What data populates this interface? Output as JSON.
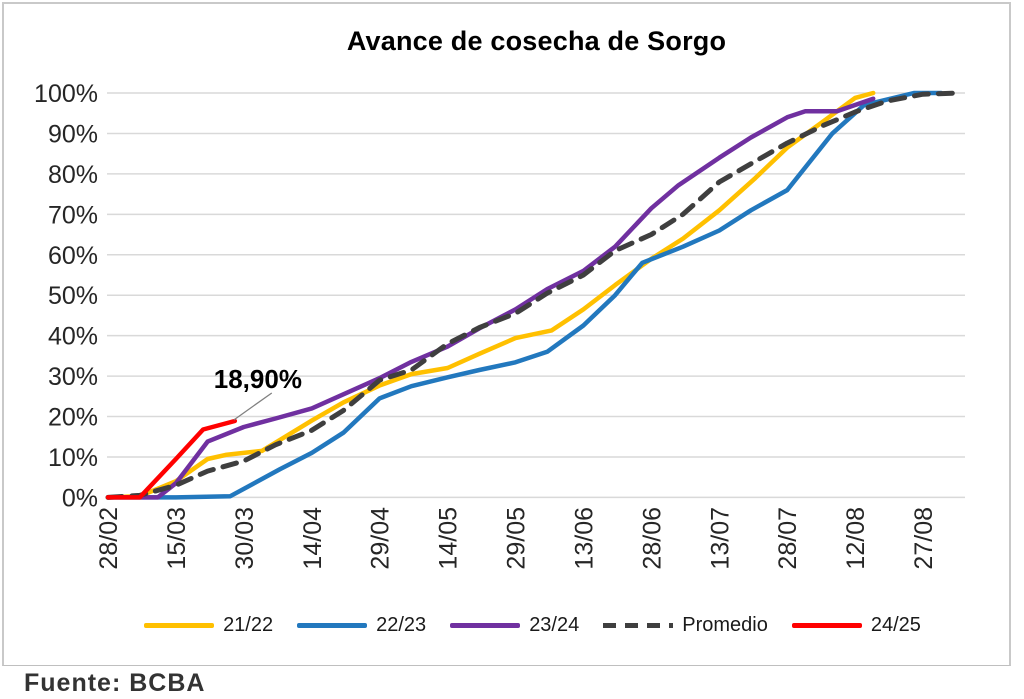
{
  "title": "Avance de cosecha de Sorgo",
  "source_note": "Fuente: BCBA",
  "colors": {
    "gridline": "#D9D9D9",
    "axis_text": "#262626",
    "title_text": "#000000",
    "annotation_leader": "#808080",
    "frame_border": "#C9C9C9"
  },
  "chart_data": {
    "type": "line",
    "title": "Avance de cosecha de Sorgo",
    "xlabel": "",
    "ylabel": "",
    "ylim": [
      0,
      100
    ],
    "y_ticks": [
      0,
      10,
      20,
      30,
      40,
      50,
      60,
      70,
      80,
      90,
      100
    ],
    "y_tick_suffix": "%",
    "grid": "horizontal",
    "legend_position": "bottom",
    "x_tick_labels": [
      "28/02",
      "15/03",
      "30/03",
      "14/04",
      "29/04",
      "14/05",
      "29/05",
      "13/06",
      "28/06",
      "13/07",
      "28/07",
      "12/08",
      "27/08"
    ],
    "x_tick_days": [
      0,
      15,
      30,
      45,
      60,
      75,
      90,
      105,
      120,
      135,
      150,
      165,
      180
    ],
    "x_range_days": [
      0,
      190
    ],
    "series": [
      {
        "name": "21/22",
        "color": "#FFC000",
        "dash": null,
        "points": [
          [
            0,
            0
          ],
          [
            7,
            0.3
          ],
          [
            15,
            4
          ],
          [
            22,
            9.5
          ],
          [
            26,
            10.5
          ],
          [
            34,
            11.5
          ],
          [
            45,
            19
          ],
          [
            52,
            23.5
          ],
          [
            60,
            27.7
          ],
          [
            67,
            30.5
          ],
          [
            75,
            32
          ],
          [
            82,
            35.5
          ],
          [
            90,
            39.4
          ],
          [
            98,
            41.3
          ],
          [
            105,
            46.5
          ],
          [
            112,
            52.5
          ],
          [
            120,
            59
          ],
          [
            127,
            64
          ],
          [
            135,
            71
          ],
          [
            143,
            79
          ],
          [
            150,
            86.5
          ],
          [
            158,
            93
          ],
          [
            165,
            98.8
          ],
          [
            169,
            100
          ]
        ]
      },
      {
        "name": "22/23",
        "color": "#2278BE",
        "dash": null,
        "points": [
          [
            0,
            0
          ],
          [
            15,
            0
          ],
          [
            27,
            0.3
          ],
          [
            38,
            7
          ],
          [
            45,
            11
          ],
          [
            52,
            16
          ],
          [
            60,
            24.5
          ],
          [
            67,
            27.5
          ],
          [
            75,
            29.7
          ],
          [
            82,
            31.5
          ],
          [
            90,
            33.4
          ],
          [
            97,
            36
          ],
          [
            105,
            42.5
          ],
          [
            112,
            50
          ],
          [
            118,
            58
          ],
          [
            127,
            62
          ],
          [
            135,
            66
          ],
          [
            142,
            71
          ],
          [
            150,
            76
          ],
          [
            160,
            90
          ],
          [
            167,
            97
          ],
          [
            178,
            100
          ],
          [
            184,
            100
          ]
        ]
      },
      {
        "name": "23/24",
        "color": "#7030A0",
        "dash": null,
        "points": [
          [
            0,
            0
          ],
          [
            7,
            0
          ],
          [
            11,
            0
          ],
          [
            15,
            3.5
          ],
          [
            22,
            13.8
          ],
          [
            30,
            17.4
          ],
          [
            37,
            19.5
          ],
          [
            45,
            22
          ],
          [
            52,
            25.5
          ],
          [
            60,
            29.5
          ],
          [
            67,
            33.5
          ],
          [
            75,
            37.3
          ],
          [
            82,
            41.8
          ],
          [
            90,
            46.5
          ],
          [
            97,
            51.5
          ],
          [
            105,
            56
          ],
          [
            112,
            62
          ],
          [
            120,
            71.5
          ],
          [
            126,
            77.2
          ],
          [
            135,
            84
          ],
          [
            142,
            89
          ],
          [
            150,
            94
          ],
          [
            154,
            95.5
          ],
          [
            161,
            95.5
          ],
          [
            169,
            98.6
          ]
        ]
      },
      {
        "name": "Promedio",
        "color": "#3F3F3F",
        "dash": [
          14,
          10
        ],
        "points": [
          [
            0,
            0
          ],
          [
            7,
            0.5
          ],
          [
            15,
            3
          ],
          [
            22,
            6.5
          ],
          [
            30,
            9
          ],
          [
            37,
            13
          ],
          [
            45,
            16.6
          ],
          [
            52,
            21.5
          ],
          [
            60,
            29
          ],
          [
            67,
            31.5
          ],
          [
            75,
            38
          ],
          [
            82,
            42
          ],
          [
            90,
            45.5
          ],
          [
            97,
            50.5
          ],
          [
            105,
            55
          ],
          [
            112,
            61
          ],
          [
            120,
            65
          ],
          [
            127,
            70
          ],
          [
            135,
            78
          ],
          [
            142,
            82.5
          ],
          [
            150,
            87.6
          ],
          [
            158,
            92
          ],
          [
            165,
            95.3
          ],
          [
            172,
            98
          ],
          [
            180,
            99.7
          ],
          [
            188,
            100
          ]
        ]
      },
      {
        "name": "24/25",
        "color": "#FF0000",
        "dash": null,
        "points": [
          [
            0,
            0
          ],
          [
            7,
            0
          ],
          [
            15,
            9.5
          ],
          [
            21,
            16.8
          ],
          [
            28,
            18.9
          ]
        ]
      }
    ],
    "annotation": {
      "text": "18,90%",
      "series": "24/25",
      "anchor_day": 28,
      "anchor_value": 18.9
    }
  },
  "legend": {
    "items": [
      "21/22",
      "22/23",
      "23/24",
      "Promedio",
      "24/25"
    ]
  }
}
